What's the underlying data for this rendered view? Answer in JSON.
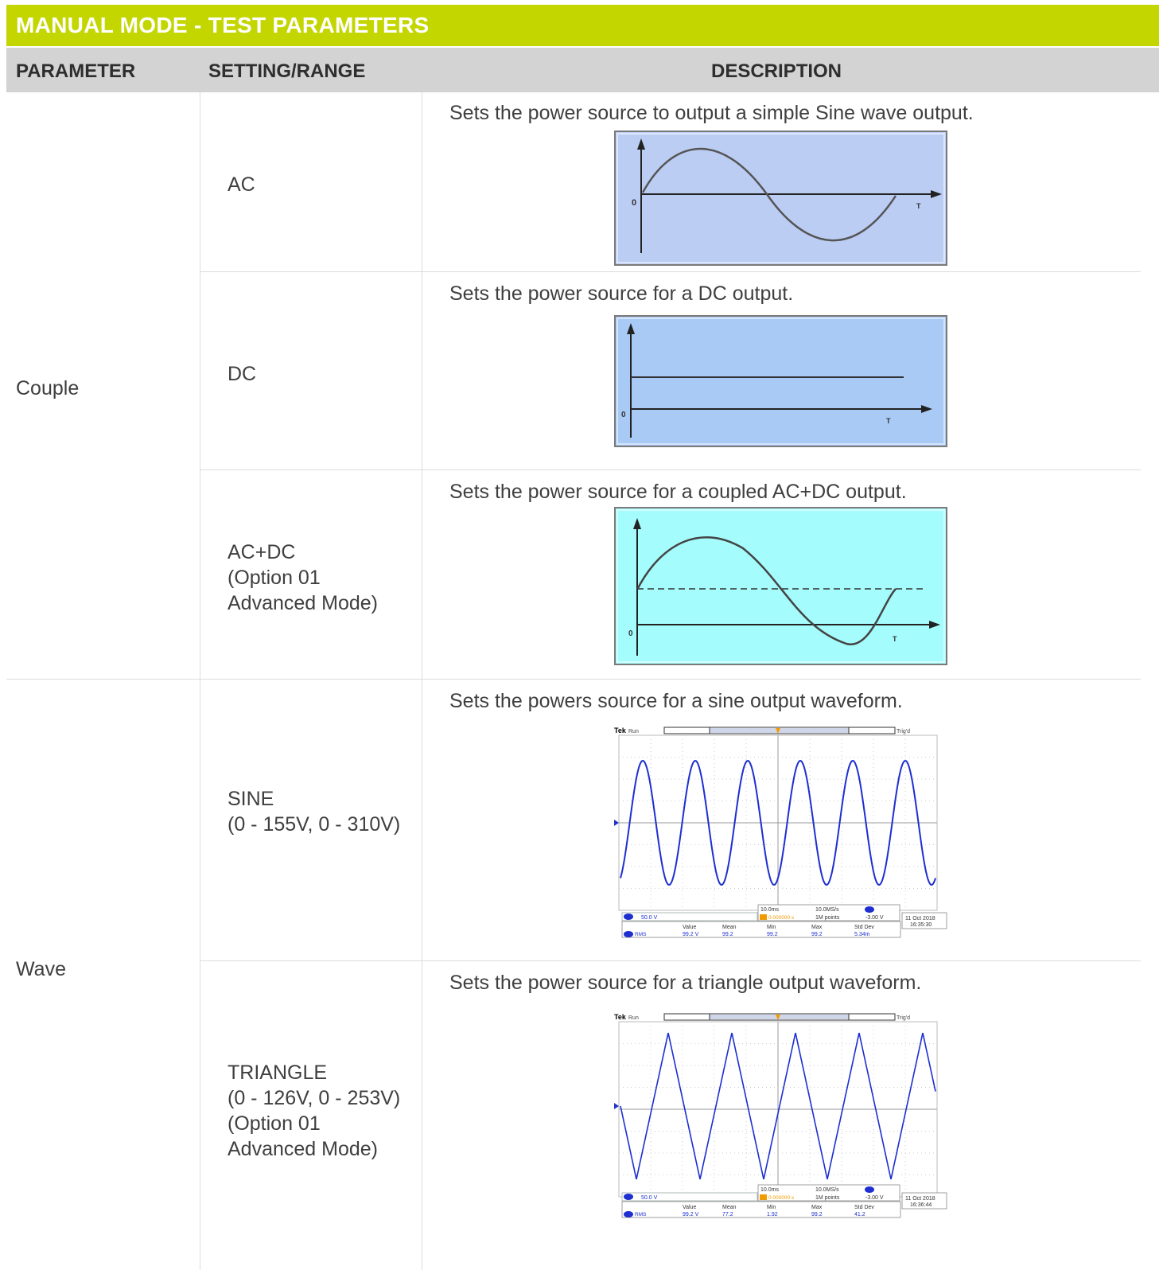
{
  "title": "MANUAL MODE - TEST PARAMETERS",
  "headers": {
    "parameter": "PARAMETER",
    "setting": "SETTING/RANGE",
    "description": "DESCRIPTION"
  },
  "groups": [
    {
      "name": "Couple"
    },
    {
      "name": "Wave"
    }
  ],
  "rows": [
    {
      "setting": [
        "AC"
      ],
      "description": "Sets the power source to output a simple Sine wave output.",
      "diagram": {
        "origin": "0",
        "axis": "T"
      }
    },
    {
      "setting": [
        "DC"
      ],
      "description": "Sets the power source for a DC output.",
      "diagram": {
        "origin": "0",
        "axis": "T"
      }
    },
    {
      "setting": [
        "AC+DC",
        "(Option 01",
        "Advanced Mode)"
      ],
      "description": "Sets the power source for a coupled AC+DC output.",
      "diagram": {
        "origin": "0",
        "axis": "T"
      }
    },
    {
      "setting": [
        "SINE",
        "(0 - 155V, 0 - 310V)"
      ],
      "description": "Sets the powers source for a sine output waveform.",
      "scope": {
        "brand": "Tek",
        "state": "Run",
        "trig": "Trig'd",
        "ch_marker": "1",
        "volts_div": "50.0 V",
        "timebase": "10.0ms",
        "delay": "0.000000 s",
        "sample_rate": "10.0MS/s",
        "points": "1M points",
        "trig_level": "-3.00 V",
        "date": "11 Oct 2018",
        "time": "16:35:30",
        "meas_label": "RMS",
        "meas_headers": [
          "Value",
          "Mean",
          "Min",
          "Max",
          "Std Dev"
        ],
        "meas_values": [
          "99.2 V",
          "99.2",
          "99.2",
          "99.2",
          "5.34m"
        ]
      }
    },
    {
      "setting": [
        "TRIANGLE",
        "(0 - 126V, 0 - 253V)",
        "(Option 01",
        "Advanced Mode)"
      ],
      "description": "Sets the power source for a triangle output waveform.",
      "scope": {
        "brand": "Tek",
        "state": "Run",
        "trig": "Trig'd",
        "ch_marker": "1",
        "volts_div": "50.0 V",
        "timebase": "10.0ms",
        "delay": "0.000000 s",
        "sample_rate": "10.0MS/s",
        "points": "1M points",
        "trig_level": "-3.00 V",
        "date": "11 Oct 2018",
        "time": "16:36:44",
        "meas_label": "RMS",
        "meas_headers": [
          "Value",
          "Mean",
          "Min",
          "Max",
          "Std Dev"
        ],
        "meas_values": [
          "99.2 V",
          "77.2",
          "1.92",
          "99.2",
          "41.2"
        ]
      }
    }
  ]
}
